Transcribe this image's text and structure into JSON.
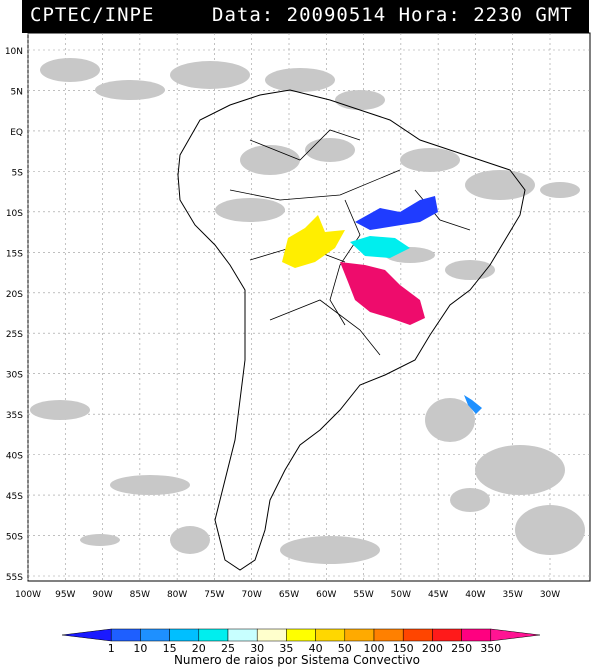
{
  "header": {
    "source": "CPTEC/INPE",
    "datetime": "Data: 20090514 Hora: 2230 GMT"
  },
  "map": {
    "lat_labels": [
      "10N",
      "5N",
      "EQ",
      "5S",
      "10S",
      "15S",
      "20S",
      "25S",
      "30S",
      "35S",
      "40S",
      "45S",
      "50S",
      "55S"
    ],
    "lon_labels": [
      "100W",
      "95W",
      "90W",
      "85W",
      "80W",
      "75W",
      "70W",
      "65W",
      "60W",
      "55W",
      "50W",
      "45W",
      "40W",
      "35W",
      "30W"
    ],
    "cloud_color": "#c8c8c8",
    "land_outline_color": "#000000",
    "lightning_clusters": [
      {
        "region": "north-east",
        "color": "#1f3cff",
        "class": "1-10"
      },
      {
        "region": "central-east",
        "color": "#00eeee",
        "class": "20-25"
      },
      {
        "region": "central-west",
        "color": "#ffee00",
        "class": "35-40"
      },
      {
        "region": "south-central",
        "color": "#ee0c6c",
        "class": "350"
      },
      {
        "region": "offshore-south",
        "color": "#1e90ff",
        "class": "10-15"
      }
    ]
  },
  "colorbar": {
    "ticks": [
      "1",
      "10",
      "15",
      "20",
      "25",
      "30",
      "35",
      "40",
      "50",
      "100",
      "150",
      "200",
      "250",
      "350"
    ],
    "colors": [
      "#1a1aff",
      "#1e5fff",
      "#1e90ff",
      "#00bfff",
      "#00eeee",
      "#c8ffff",
      "#ffffcc",
      "#ffff00",
      "#ffd700",
      "#ffaa00",
      "#ff8000",
      "#ff4500",
      "#ff1a1a",
      "#ff0080",
      "#ff1493"
    ],
    "label": "Numero de raios por Sistema Convectivo"
  }
}
